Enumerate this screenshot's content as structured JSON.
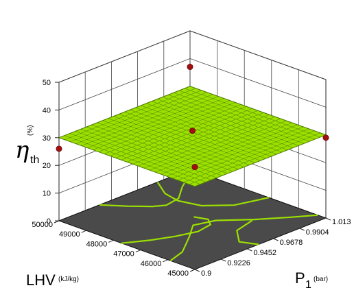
{
  "chart_data": {
    "type": "surface",
    "z_axis": {
      "symbol": "η",
      "subscript": "th",
      "unit": "(%)",
      "ticks": [
        0,
        10,
        20,
        30,
        40,
        50
      ],
      "range": [
        0,
        50
      ]
    },
    "x_axis": {
      "label": "LHV",
      "unit": "(kJ/kg)",
      "ticks": [
        45000,
        46000,
        47000,
        48000,
        49000,
        50000
      ],
      "range": [
        45000,
        50000
      ]
    },
    "y_axis": {
      "label": "P",
      "subscript": "1",
      "unit": "(bar)",
      "ticks": [
        0.9,
        0.9226,
        0.9452,
        0.9678,
        0.9904,
        1.013
      ],
      "tick_labels": [
        "0.9",
        "0.9226",
        "0.9452",
        "0.9678",
        "0.9904",
        "1.013"
      ],
      "range": [
        0.9,
        1.013
      ]
    },
    "surface": {
      "color": "#9be000",
      "mesh_color": "#4e7a00",
      "z_at_corners": {
        "lhv_min_p_min": 30.0,
        "lhv_max_p_min": 30.0,
        "lhv_min_p_max": 30.0,
        "lhv_max_p_max": 30.0
      }
    },
    "design_points": [
      {
        "lhv": 45000,
        "p1": 0.9,
        "eta": 37
      },
      {
        "lhv": 50000,
        "p1": 1.013,
        "eta": 37
      },
      {
        "lhv": 47500,
        "p1": 0.9565,
        "eta": 32
      },
      {
        "lhv": 45000,
        "p1": 1.013,
        "eta": 29
      },
      {
        "lhv": 50000,
        "p1": 0.9,
        "eta": 26
      }
    ],
    "point_color": "#a01010",
    "floor_color": "#4a4a4a",
    "contour_color": "#9be000",
    "grid": true
  }
}
